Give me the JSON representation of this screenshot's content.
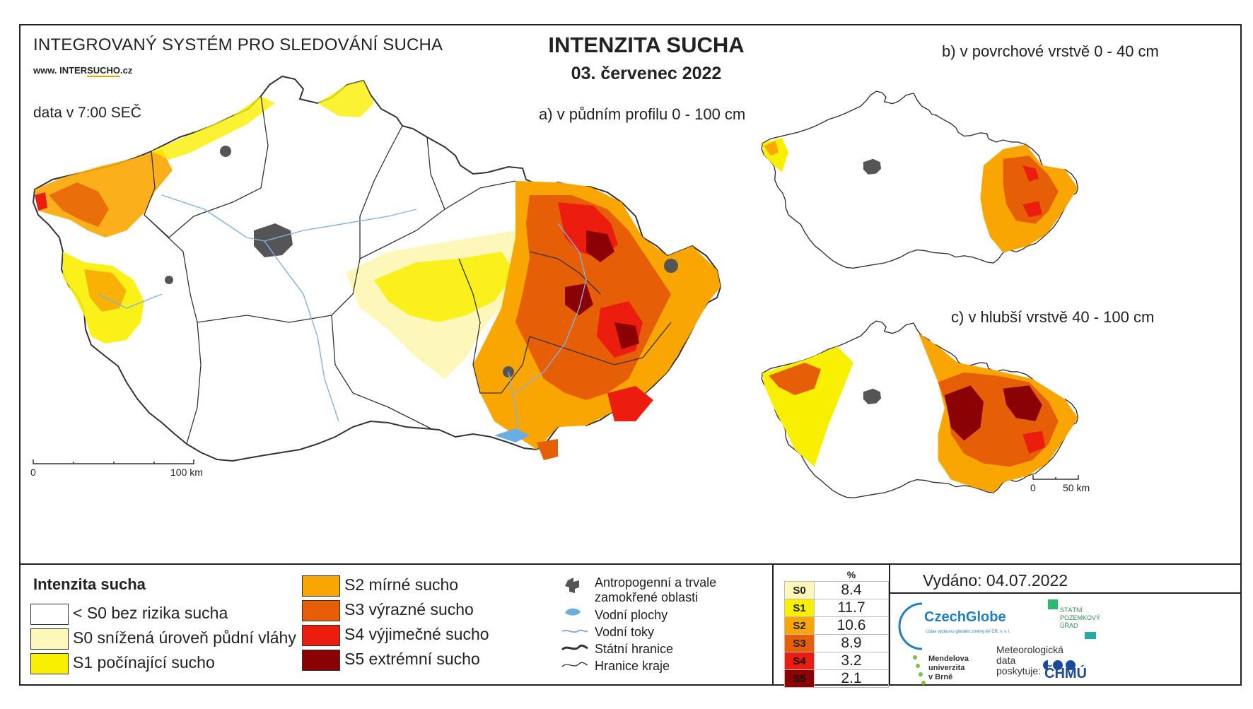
{
  "header": {
    "system_title": "INTEGROVANÝ SYSTÉM PRO SLEDOVÁNÍ SUCHA",
    "website_prefix": "www. INTER",
    "website_highlight": "SUCHO",
    "website_suffix": ".cz",
    "data_time": "data v 7:00 SEČ",
    "main_title": "INTENZITA SUCHA",
    "date": "03. červenec 2022"
  },
  "maps": {
    "a_label": "a) v půdním profilu 0 - 100 cm",
    "b_label": "b) v povrchové vrstvě 0 - 40 cm",
    "c_label": "c) v hlubší vrstvě 40 - 100 cm",
    "scale_main_start": "0",
    "scale_main_end": "100 km",
    "scale_small_start": "0",
    "scale_small_end": "50 km"
  },
  "legend": {
    "title": "Intenzita sucha",
    "classes": [
      {
        "label": "< S0 bez rizika sucha",
        "color": "#ffffff"
      },
      {
        "label": "S0 snížená úroveň půdní vláhy",
        "color": "#fdf8b9"
      },
      {
        "label": "S1 počínající sucho",
        "color": "#f9ef00"
      },
      {
        "label": "S2 mírné sucho",
        "color": "#f9a602"
      },
      {
        "label": "S3 výrazné sucho",
        "color": "#e65e05"
      },
      {
        "label": "S4 výjimečné sucho",
        "color": "#ec1c0f"
      },
      {
        "label": "S5 extrémní sucho",
        "color": "#8b0205"
      }
    ],
    "features": [
      {
        "label": "Antropogenní a trvale",
        "label2": "zamokřené oblasti",
        "icon": "urban-area-icon"
      },
      {
        "label": "Vodní plochy",
        "icon": "water-body-icon"
      },
      {
        "label": "Vodní toky",
        "icon": "river-icon"
      },
      {
        "label": "Státní hranice",
        "icon": "state-border-icon"
      },
      {
        "label": "Hranice kraje",
        "icon": "region-border-icon"
      }
    ]
  },
  "stats": {
    "header": "%",
    "rows": [
      {
        "key": "S0",
        "value": "8.4",
        "color": "#fdf8b9"
      },
      {
        "key": "S1",
        "value": "11.7",
        "color": "#f9ef00"
      },
      {
        "key": "S2",
        "value": "10.6",
        "color": "#f9a602"
      },
      {
        "key": "S3",
        "value": "8.9",
        "color": "#e65e05"
      },
      {
        "key": "S4",
        "value": "3.2",
        "color": "#ec1c0f"
      },
      {
        "key": "S5",
        "value": "2.1",
        "color": "#8b0205"
      }
    ]
  },
  "footer": {
    "issued": "Vydáno: 04.07.2022",
    "czechglobe": "CzechGlobe",
    "czechglobe_sub": "Ústav výzkumu globální změny AV ČR, v. v. i.",
    "spu_line1": "STÁTNÍ",
    "spu_line2": "POZEMKOVÝ",
    "spu_line3": "ÚŘAD",
    "mendel_line1": "Mendelova",
    "mendel_line2": "univerzita",
    "mendel_line3": "v Brně",
    "meteo_line1": "Meteorologická",
    "meteo_line2": "data",
    "meteo_line3": "poskytuje:",
    "chmu": "ČHMÚ"
  }
}
